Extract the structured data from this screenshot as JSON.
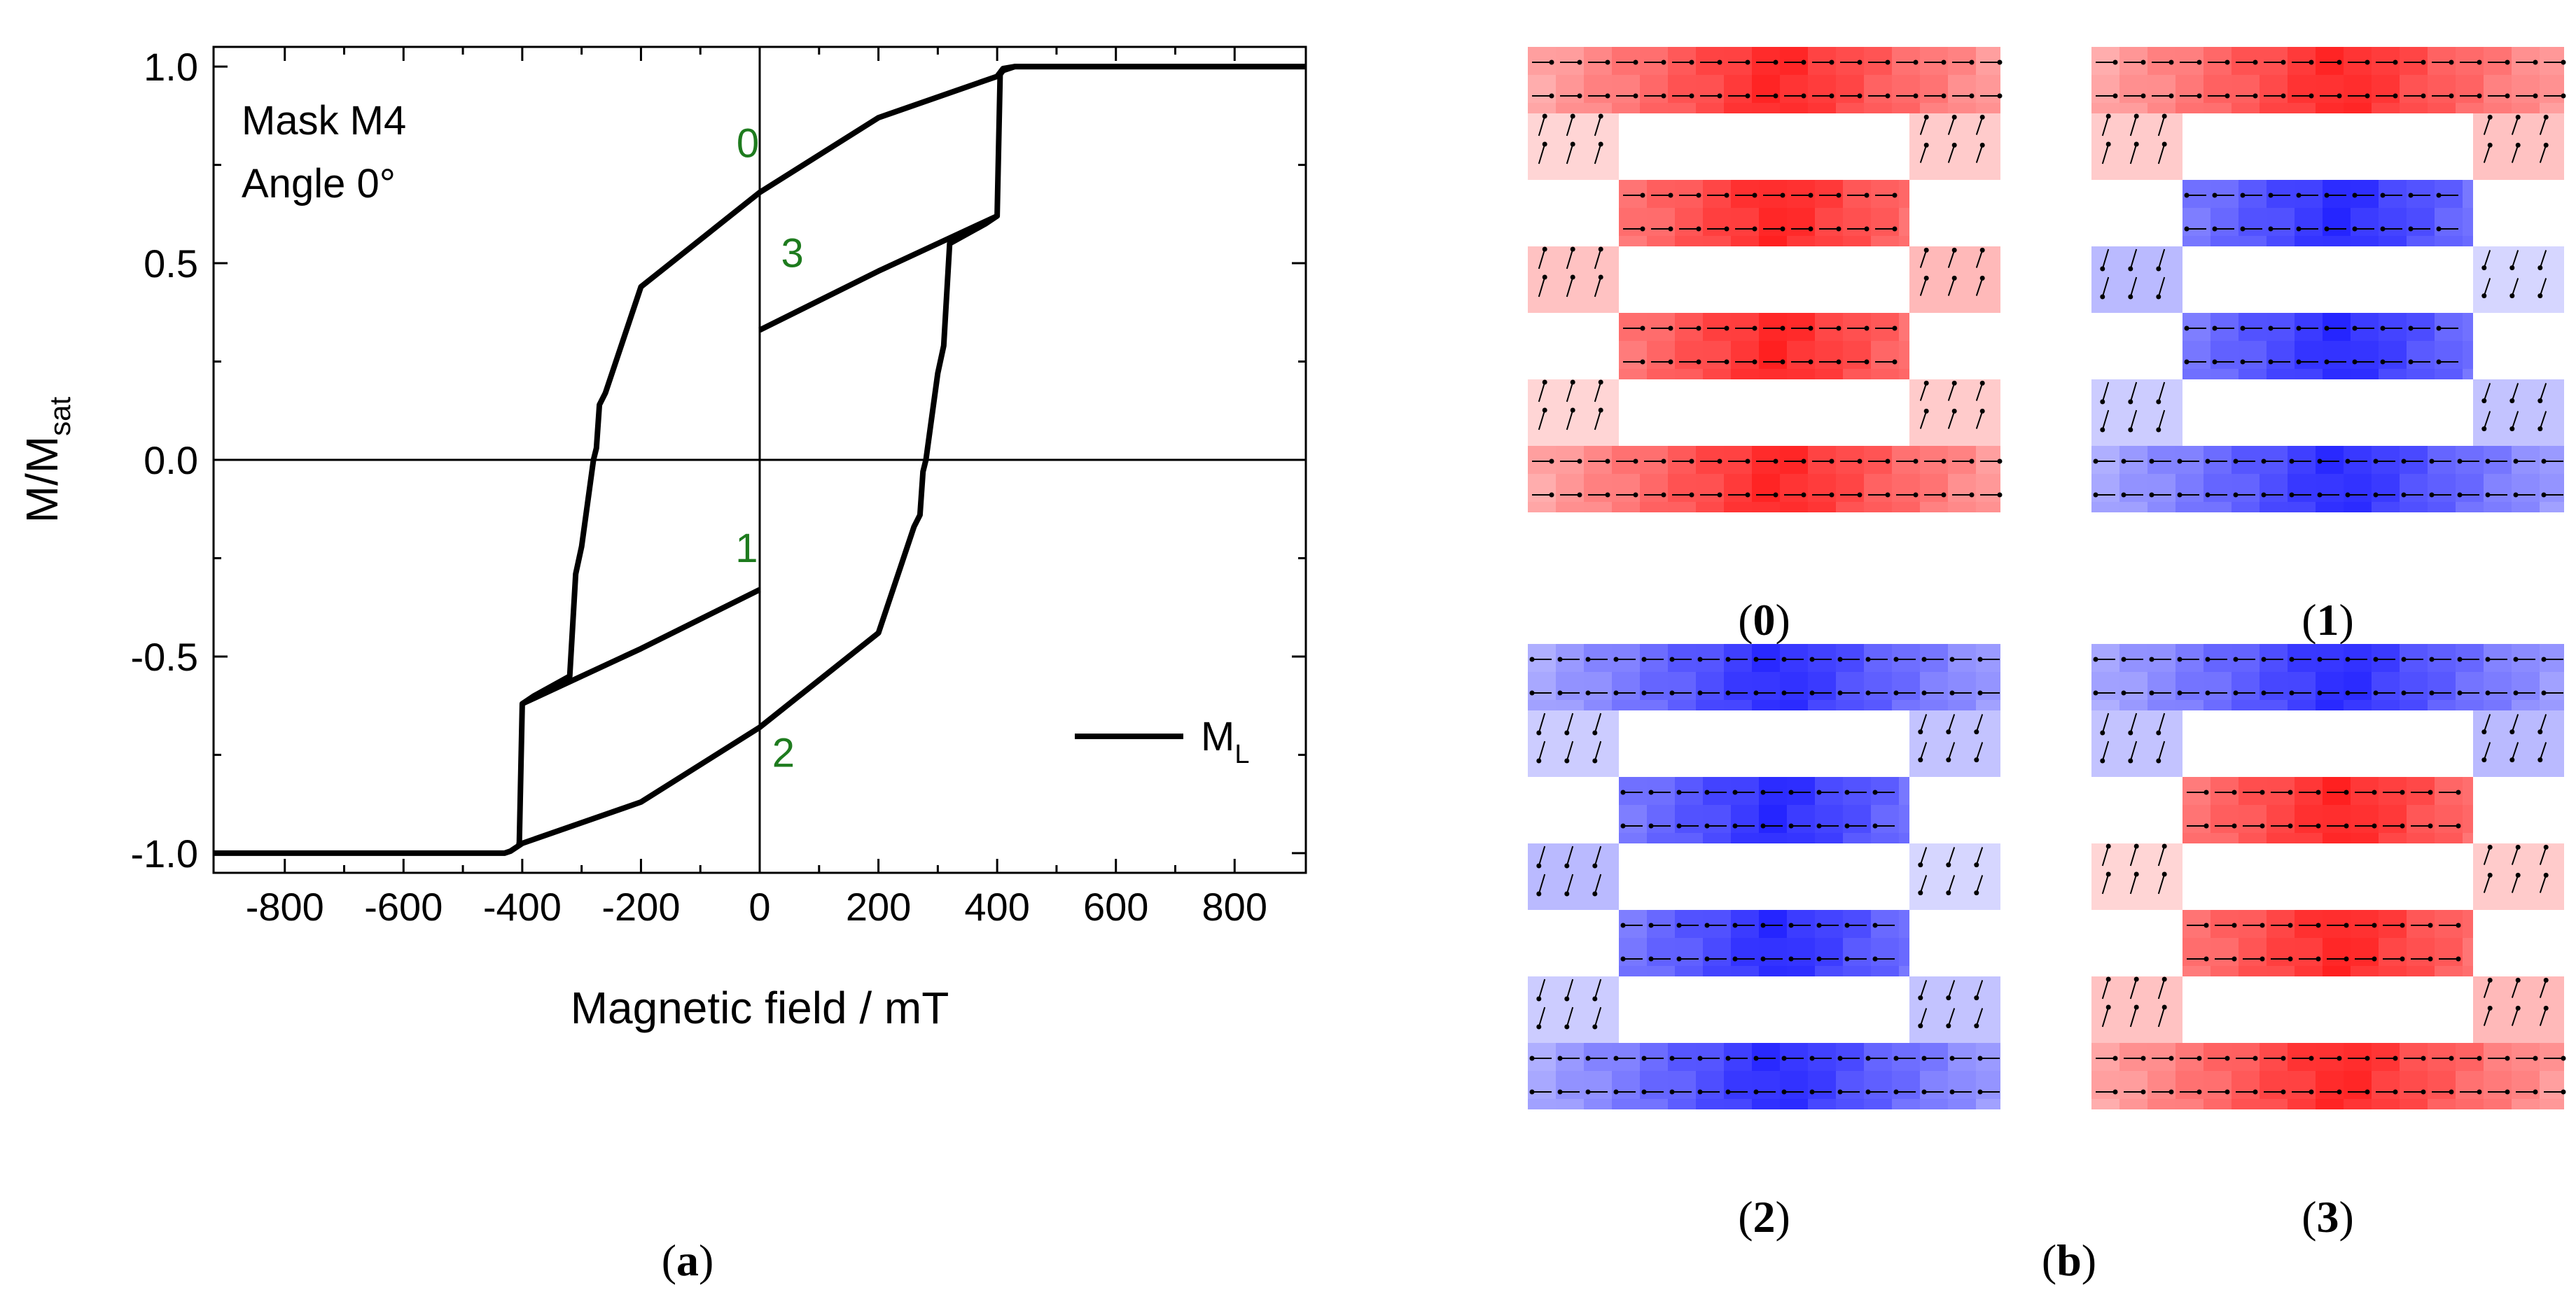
{
  "chart_data": {
    "type": "line",
    "title": "",
    "xlabel": "Magnetic field / mT",
    "ylabel_main": "M/M",
    "ylabel_sub": "sat",
    "xlim": [
      -920,
      920
    ],
    "ylim": [
      -1.05,
      1.05
    ],
    "xticks": [
      -800,
      -600,
      -400,
      -200,
      0,
      200,
      400,
      600,
      800
    ],
    "xtick_labels": [
      "-800",
      "-600",
      "-400",
      "-200",
      "0",
      "200",
      "400",
      "600",
      "800"
    ],
    "yticks": [
      -1.0,
      -0.5,
      0.0,
      0.5,
      1.0
    ],
    "ytick_labels": [
      "-1.0",
      "-0.5",
      "0.0",
      "0.5",
      "1.0"
    ],
    "annotation_lines": [
      "Mask M4",
      "Angle 0°"
    ],
    "legend": {
      "label_main": "M",
      "label_sub": "L",
      "placement": "lower-right"
    },
    "point_labels": [
      {
        "label": "0",
        "x": -20,
        "y": 0.77
      },
      {
        "label": "3",
        "x": 55,
        "y": 0.49
      },
      {
        "label": "1",
        "x": -22,
        "y": -0.26
      },
      {
        "label": "2",
        "x": 40,
        "y": -0.78
      }
    ],
    "series": [
      {
        "name": "M_L ascending branch",
        "x": [
          -920,
          -430,
          -420,
          -400,
          -200,
          0,
          200,
          260,
          270,
          275,
          280,
          300,
          310,
          320,
          380,
          400,
          405,
          410,
          430,
          450,
          920
        ],
        "y": [
          -1.0,
          -1.0,
          -0.995,
          -0.975,
          -0.87,
          -0.68,
          -0.44,
          -0.17,
          -0.14,
          -0.03,
          0.0,
          0.22,
          0.29,
          0.55,
          0.6,
          0.62,
          0.98,
          0.99,
          1.0,
          1.0,
          1.0
        ]
      },
      {
        "name": "M_L descending branch",
        "x": [
          920,
          450,
          430,
          410,
          400,
          200,
          0,
          -200,
          -260,
          -270,
          -275,
          -280,
          -300,
          -310,
          -320,
          -380,
          -400,
          -405,
          -410
        ],
        "y": [
          1.0,
          1.0,
          1.0,
          0.995,
          0.975,
          0.87,
          0.68,
          0.44,
          0.17,
          0.14,
          0.03,
          0.0,
          -0.22,
          -0.29,
          -0.55,
          -0.6,
          -0.62,
          -0.98,
          -0.98
        ]
      },
      {
        "name": "minor loop from 3",
        "x": [
          0,
          200,
          400
        ],
        "y": [
          0.33,
          0.48,
          0.62
        ]
      },
      {
        "name": "minor loop from 1",
        "x": [
          0,
          -200,
          -400
        ],
        "y": [
          -0.33,
          -0.48,
          -0.62
        ]
      }
    ]
  },
  "captions": {
    "a": "a",
    "b": "b"
  },
  "panels": [
    {
      "label": "0",
      "arms": [
        "red",
        "red",
        "red",
        "red"
      ],
      "left_sides": [
        "red",
        "red",
        "red"
      ],
      "right_sides": [
        "red",
        "red",
        "red"
      ]
    },
    {
      "label": "1",
      "arms": [
        "red",
        "blue",
        "blue",
        "blue"
      ],
      "left_sides": [
        "red",
        "blue",
        "blue"
      ],
      "right_sides": [
        "red",
        "blue",
        "blue"
      ]
    },
    {
      "label": "2",
      "arms": [
        "blue",
        "blue",
        "blue",
        "blue"
      ],
      "left_sides": [
        "blue",
        "blue",
        "blue"
      ],
      "right_sides": [
        "blue",
        "blue",
        "blue"
      ]
    },
    {
      "label": "3",
      "arms": [
        "blue",
        "red",
        "red",
        "red"
      ],
      "left_sides": [
        "blue",
        "red",
        "red"
      ],
      "right_sides": [
        "blue",
        "red",
        "red"
      ]
    }
  ],
  "colors": {
    "red": "#ff1010",
    "blue": "#1c1cf0",
    "green": "#1e7b1e"
  }
}
